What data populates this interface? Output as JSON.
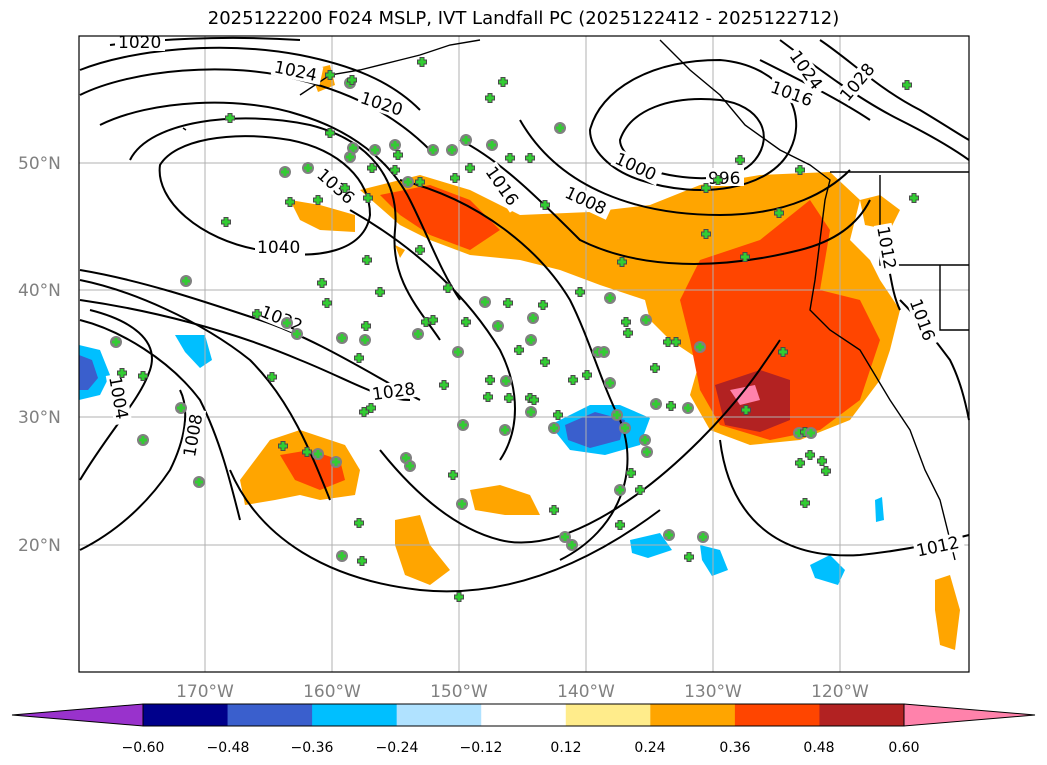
{
  "title": "2025122200 F024 MSLP, IVT Landfall PC (2025122412 - 2025122712)",
  "map": {
    "lat_labels": [
      "50°N",
      "40°N",
      "30°N",
      "20°N"
    ],
    "lon_labels": [
      "170°W",
      "160°W",
      "150°W",
      "140°W",
      "130°W",
      "120°W"
    ],
    "isobar_labels": [
      "1020",
      "1024",
      "1020",
      "1036",
      "1040",
      "1032",
      "1028",
      "1016",
      "1008",
      "1000",
      "996",
      "1016",
      "1024",
      "1028",
      "1012",
      "1016",
      "1004",
      "1008",
      "1012"
    ],
    "grid": true
  },
  "colorbar": {
    "tick_labels": [
      "−0.60",
      "−0.48",
      "−0.36",
      "−0.24",
      "−0.12",
      "0.12",
      "0.24",
      "0.36",
      "0.48",
      "0.60"
    ],
    "colors": [
      "#9932cc",
      "#00008b",
      "#3a5fcd",
      "#00bfff",
      "#b0e2ff",
      "#ffffff",
      "#ffec8b",
      "#ffa500",
      "#ff4500",
      "#b22222",
      "#ff82ab"
    ]
  },
  "colors": {
    "marker_cross": "#32cd32",
    "marker_circle": "#808080"
  }
}
